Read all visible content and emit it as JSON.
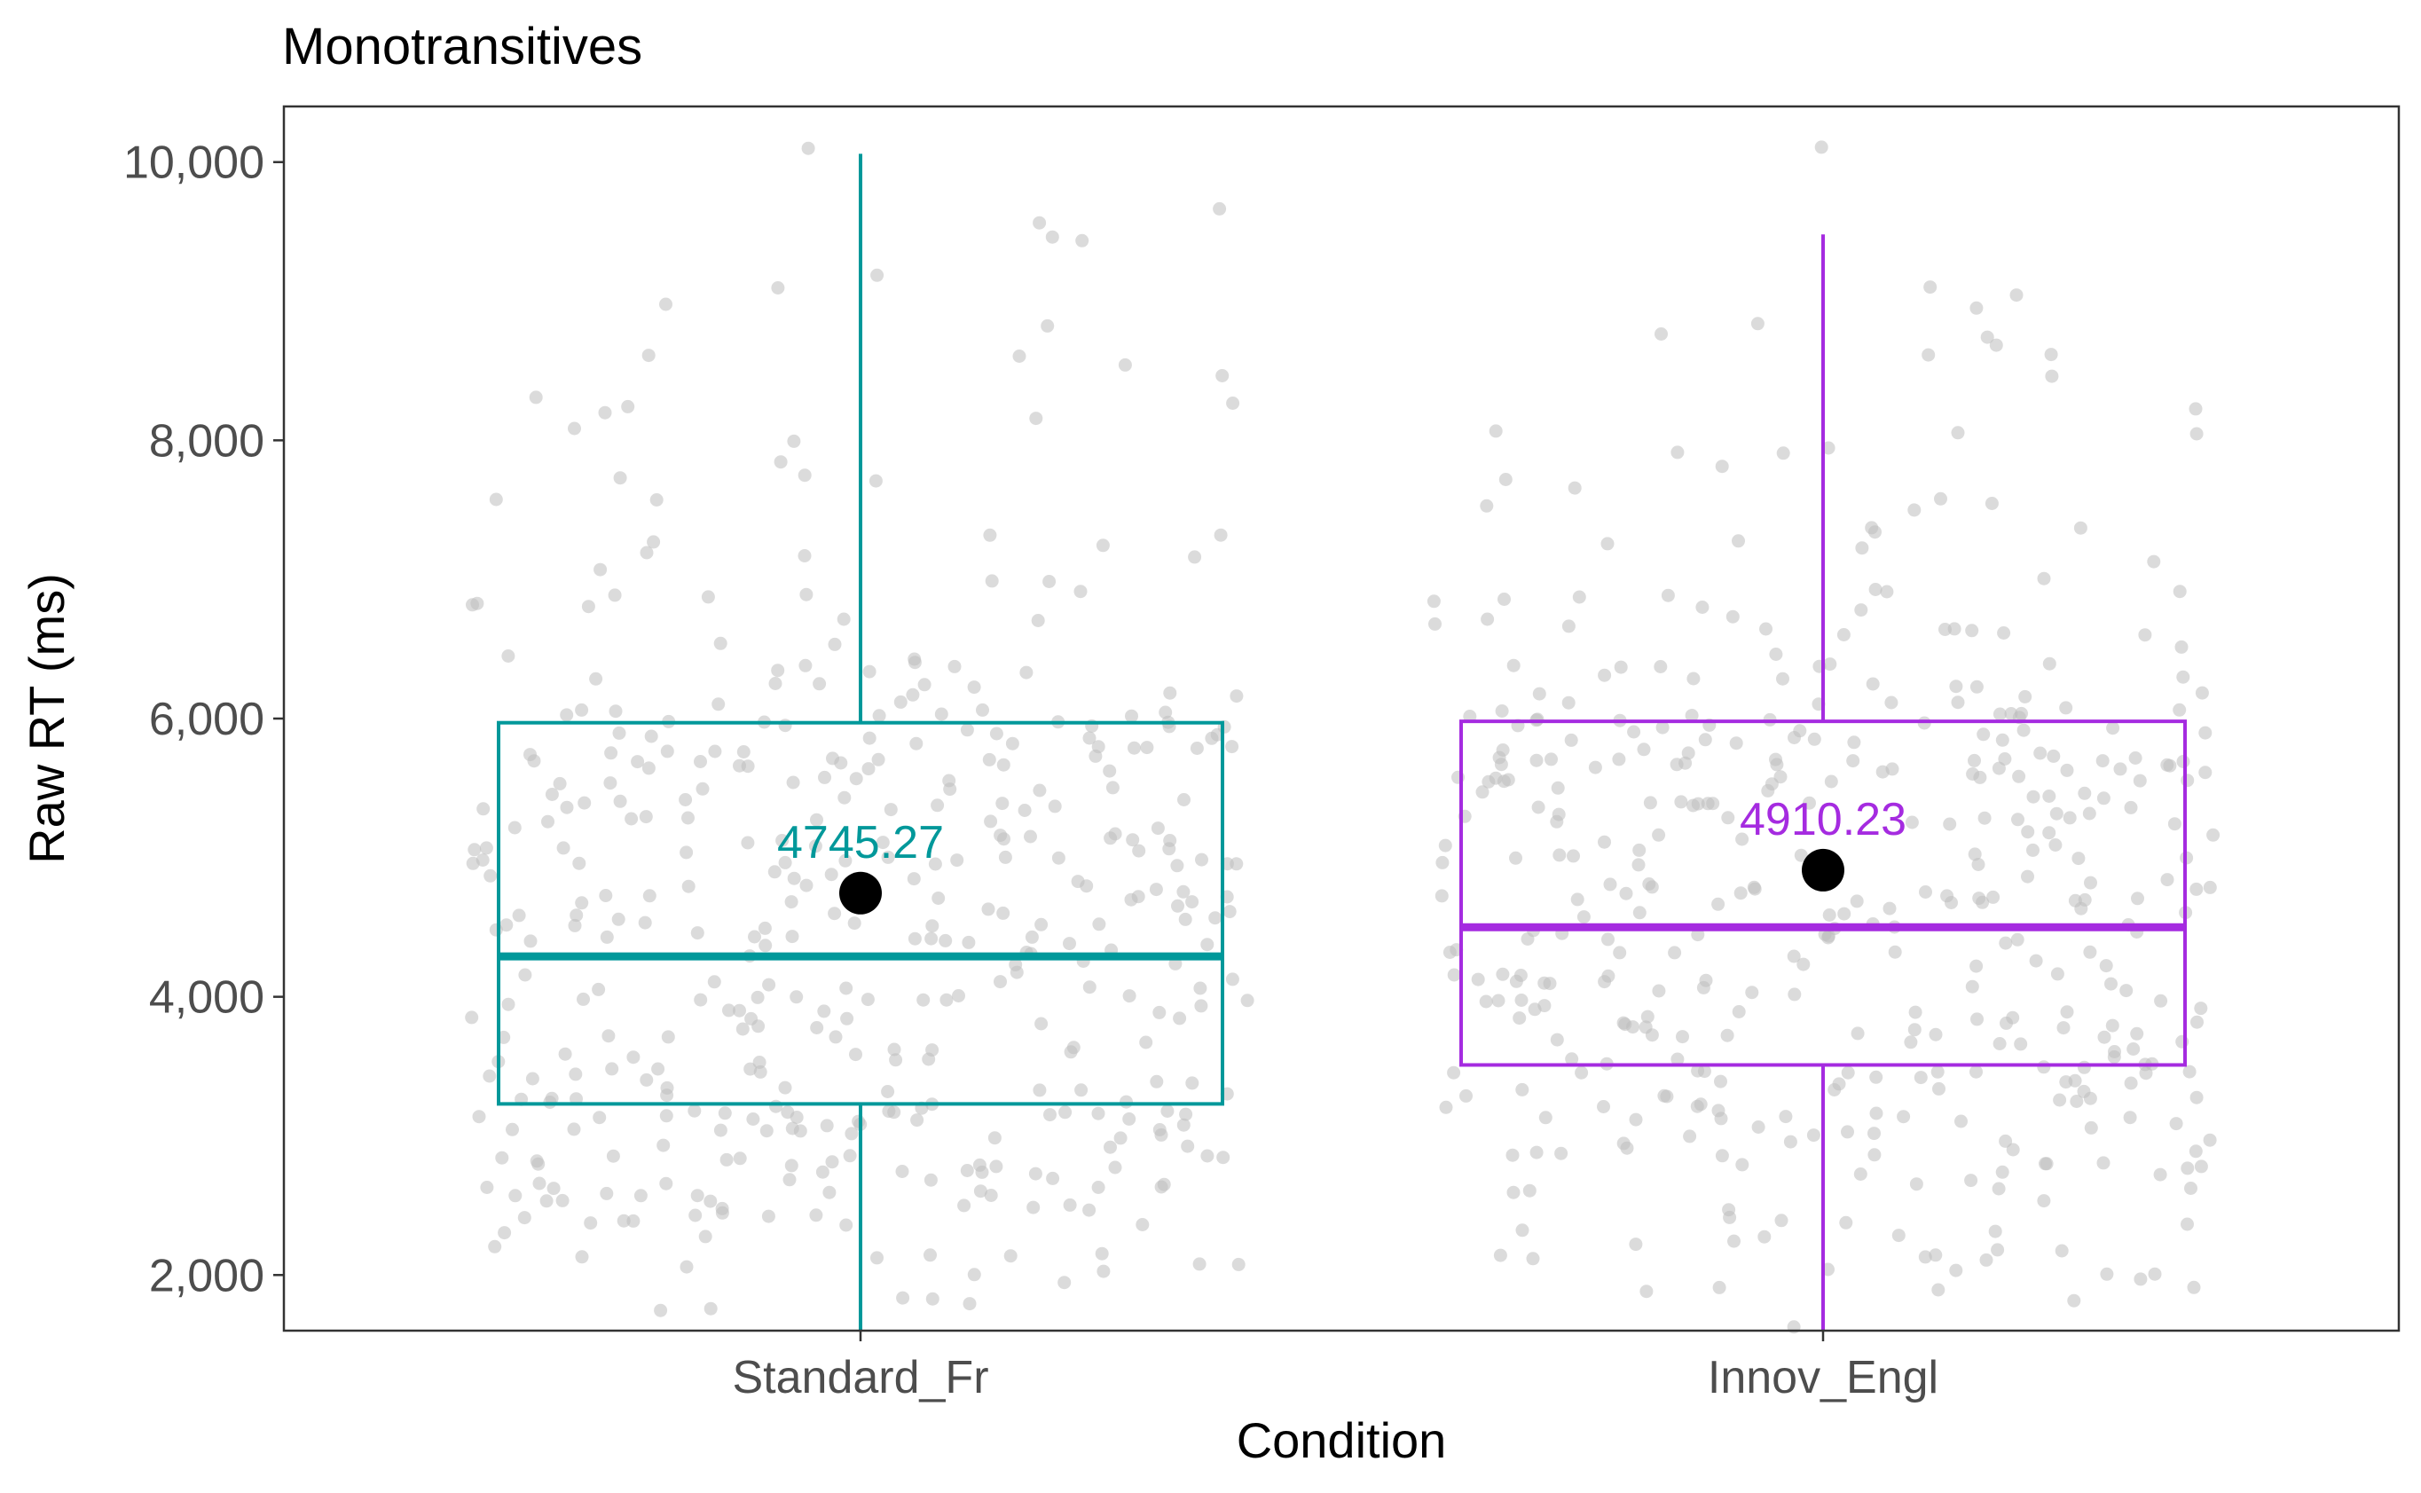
{
  "chart_data": {
    "type": "boxplot",
    "title": "Monotransitives",
    "xlabel": "Condition",
    "ylabel": "Raw RT (ms)",
    "ylim": [
      1600,
      10400
    ],
    "yticks": [
      2000,
      4000,
      6000,
      8000,
      10000
    ],
    "ytick_labels": [
      "2,000",
      "4,000",
      "6,000",
      "8,000",
      "10,000"
    ],
    "grid": false,
    "legend": "none",
    "jitter_points": {
      "color": "#bdbdbd",
      "count_per_group": 420,
      "range": [
        1600,
        10400
      ]
    },
    "categories": [
      "Standard_Fr",
      "Innov_Engl"
    ],
    "groups": [
      {
        "name": "Standard_Fr",
        "color": "#00989a",
        "whisker_low": 1600,
        "q1": 3230,
        "median": 4290,
        "q3": 5970,
        "whisker_high": 10060,
        "mean": 4745.27,
        "mean_label": "4745.27"
      },
      {
        "name": "Innov_Engl",
        "color": "#a52be0",
        "whisker_low": 1600,
        "q1": 3510,
        "median": 4500,
        "q3": 5980,
        "whisker_high": 9480,
        "mean": 4910.23,
        "mean_label": "4910.23"
      }
    ]
  }
}
